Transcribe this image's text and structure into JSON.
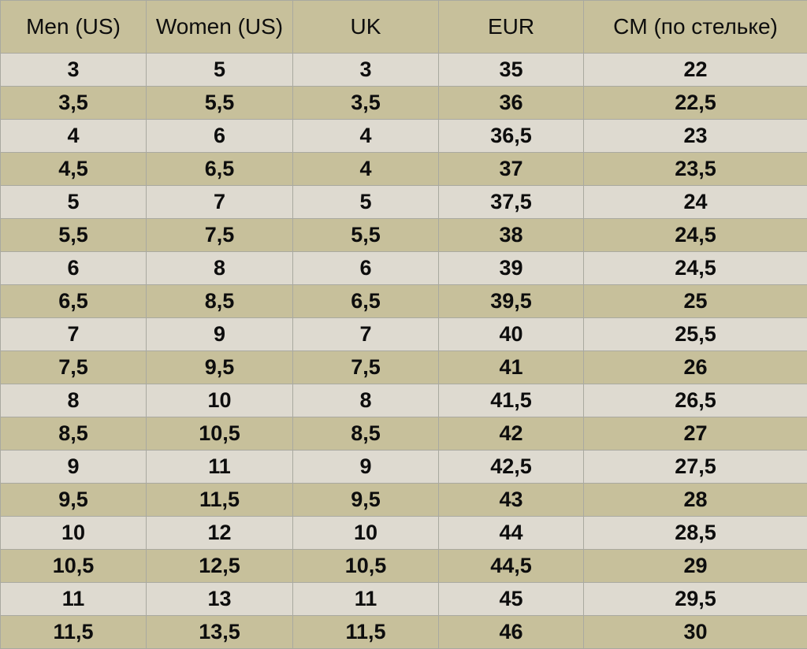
{
  "colors": {
    "header_bg": "#c7c09b",
    "row_light": "#dedad0",
    "row_dark": "#c7c09b",
    "grid_line": "#a9a9a0",
    "text": "#0d0d0d"
  },
  "table": {
    "headers": [
      "Men (US)",
      "Women (US)",
      "UK",
      "EUR",
      "CM (по стельке)"
    ],
    "rows": [
      [
        "3",
        "5",
        "3",
        "35",
        "22"
      ],
      [
        "3,5",
        "5,5",
        "3,5",
        "36",
        "22,5"
      ],
      [
        "4",
        "6",
        "4",
        "36,5",
        "23"
      ],
      [
        "4,5",
        "6,5",
        "4",
        "37",
        "23,5"
      ],
      [
        "5",
        "7",
        "5",
        "37,5",
        "24"
      ],
      [
        "5,5",
        "7,5",
        "5,5",
        "38",
        "24,5"
      ],
      [
        "6",
        "8",
        "6",
        "39",
        "24,5"
      ],
      [
        "6,5",
        "8,5",
        "6,5",
        "39,5",
        "25"
      ],
      [
        "7",
        "9",
        "7",
        "40",
        "25,5"
      ],
      [
        "7,5",
        "9,5",
        "7,5",
        "41",
        "26"
      ],
      [
        "8",
        "10",
        "8",
        "41,5",
        "26,5"
      ],
      [
        "8,5",
        "10,5",
        "8,5",
        "42",
        "27"
      ],
      [
        "9",
        "11",
        "9",
        "42,5",
        "27,5"
      ],
      [
        "9,5",
        "11,5",
        "9,5",
        "43",
        "28"
      ],
      [
        "10",
        "12",
        "10",
        "44",
        "28,5"
      ],
      [
        "10,5",
        "12,5",
        "10,5",
        "44,5",
        "29"
      ],
      [
        "11",
        "13",
        "11",
        "45",
        "29,5"
      ],
      [
        "11,5",
        "13,5",
        "11,5",
        "46",
        "30"
      ]
    ]
  }
}
